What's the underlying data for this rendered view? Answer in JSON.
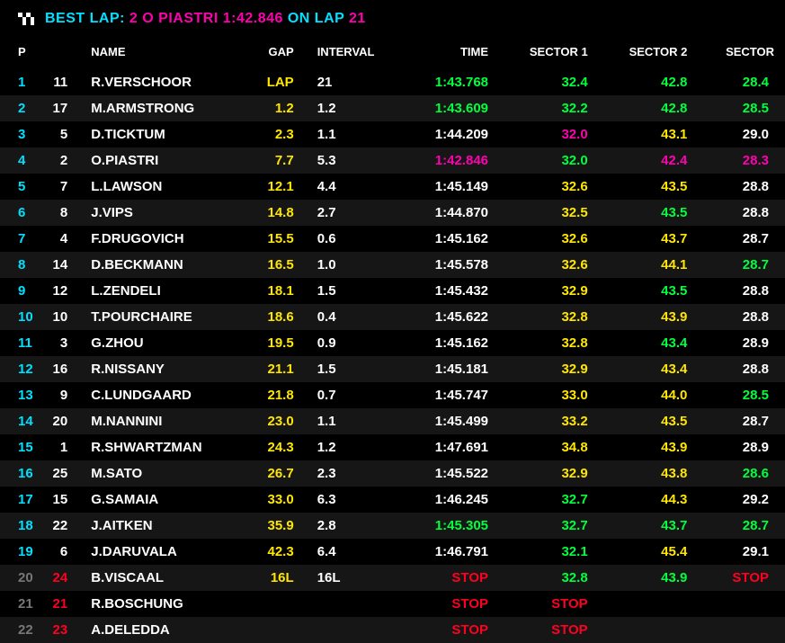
{
  "colors": {
    "white": "#ffffff",
    "cyan": "#00e0ff",
    "yellow": "#ffe600",
    "green": "#00ff3c",
    "purple": "#ff00b0",
    "red": "#ff0020",
    "grey": "#777777",
    "bg_odd": "#000000",
    "bg_even": "#161616"
  },
  "header": {
    "best_lap_label": "BEST LAP:",
    "best_lap_driver": "2 O PIASTRI",
    "best_lap_time": "1:42.846",
    "on_lap_label": "ON LAP",
    "on_lap_num": "21"
  },
  "columns": {
    "p": "P",
    "name": "NAME",
    "gap": "GAP",
    "interval": "INTERVAL",
    "time": "TIME",
    "s1": "SECTOR 1",
    "s2": "SECTOR 2",
    "s3": "SECTOR"
  },
  "rows": [
    {
      "p": "1",
      "p_c": "cyan",
      "num": "11",
      "num_c": "white",
      "name": "R.VERSCHOOR",
      "gap": "LAP",
      "gap_c": "yellow",
      "int": "21",
      "int_c": "white",
      "time": "1:43.768",
      "time_c": "green",
      "s1": "32.4",
      "s1_c": "green",
      "s2": "42.8",
      "s2_c": "green",
      "s3": "28.4",
      "s3_c": "green"
    },
    {
      "p": "2",
      "p_c": "cyan",
      "num": "17",
      "num_c": "white",
      "name": "M.ARMSTRONG",
      "gap": "1.2",
      "gap_c": "yellow",
      "int": "1.2",
      "int_c": "white",
      "time": "1:43.609",
      "time_c": "green",
      "s1": "32.2",
      "s1_c": "green",
      "s2": "42.8",
      "s2_c": "green",
      "s3": "28.5",
      "s3_c": "green"
    },
    {
      "p": "3",
      "p_c": "cyan",
      "num": "5",
      "num_c": "white",
      "name": "D.TICKTUM",
      "gap": "2.3",
      "gap_c": "yellow",
      "int": "1.1",
      "int_c": "white",
      "time": "1:44.209",
      "time_c": "white",
      "s1": "32.0",
      "s1_c": "purple",
      "s2": "43.1",
      "s2_c": "yellow",
      "s3": "29.0",
      "s3_c": "white"
    },
    {
      "p": "4",
      "p_c": "cyan",
      "num": "2",
      "num_c": "white",
      "name": "O.PIASTRI",
      "gap": "7.7",
      "gap_c": "yellow",
      "int": "5.3",
      "int_c": "white",
      "time": "1:42.846",
      "time_c": "purple",
      "s1": "32.0",
      "s1_c": "green",
      "s2": "42.4",
      "s2_c": "purple",
      "s3": "28.3",
      "s3_c": "purple"
    },
    {
      "p": "5",
      "p_c": "cyan",
      "num": "7",
      "num_c": "white",
      "name": "L.LAWSON",
      "gap": "12.1",
      "gap_c": "yellow",
      "int": "4.4",
      "int_c": "white",
      "time": "1:45.149",
      "time_c": "white",
      "s1": "32.6",
      "s1_c": "yellow",
      "s2": "43.5",
      "s2_c": "yellow",
      "s3": "28.8",
      "s3_c": "white"
    },
    {
      "p": "6",
      "p_c": "cyan",
      "num": "8",
      "num_c": "white",
      "name": "J.VIPS",
      "gap": "14.8",
      "gap_c": "yellow",
      "int": "2.7",
      "int_c": "white",
      "time": "1:44.870",
      "time_c": "white",
      "s1": "32.5",
      "s1_c": "yellow",
      "s2": "43.5",
      "s2_c": "green",
      "s3": "28.8",
      "s3_c": "white"
    },
    {
      "p": "7",
      "p_c": "cyan",
      "num": "4",
      "num_c": "white",
      "name": "F.DRUGOVICH",
      "gap": "15.5",
      "gap_c": "yellow",
      "int": "0.6",
      "int_c": "white",
      "time": "1:45.162",
      "time_c": "white",
      "s1": "32.6",
      "s1_c": "yellow",
      "s2": "43.7",
      "s2_c": "yellow",
      "s3": "28.7",
      "s3_c": "white"
    },
    {
      "p": "8",
      "p_c": "cyan",
      "num": "14",
      "num_c": "white",
      "name": "D.BECKMANN",
      "gap": "16.5",
      "gap_c": "yellow",
      "int": "1.0",
      "int_c": "white",
      "time": "1:45.578",
      "time_c": "white",
      "s1": "32.6",
      "s1_c": "yellow",
      "s2": "44.1",
      "s2_c": "yellow",
      "s3": "28.7",
      "s3_c": "green"
    },
    {
      "p": "9",
      "p_c": "cyan",
      "num": "12",
      "num_c": "white",
      "name": "L.ZENDELI",
      "gap": "18.1",
      "gap_c": "yellow",
      "int": "1.5",
      "int_c": "white",
      "time": "1:45.432",
      "time_c": "white",
      "s1": "32.9",
      "s1_c": "yellow",
      "s2": "43.5",
      "s2_c": "green",
      "s3": "28.8",
      "s3_c": "white"
    },
    {
      "p": "10",
      "p_c": "cyan",
      "num": "10",
      "num_c": "white",
      "name": "T.POURCHAIRE",
      "gap": "18.6",
      "gap_c": "yellow",
      "int": "0.4",
      "int_c": "white",
      "time": "1:45.622",
      "time_c": "white",
      "s1": "32.8",
      "s1_c": "yellow",
      "s2": "43.9",
      "s2_c": "yellow",
      "s3": "28.8",
      "s3_c": "white"
    },
    {
      "p": "11",
      "p_c": "cyan",
      "num": "3",
      "num_c": "white",
      "name": "G.ZHOU",
      "gap": "19.5",
      "gap_c": "yellow",
      "int": "0.9",
      "int_c": "white",
      "time": "1:45.162",
      "time_c": "white",
      "s1": "32.8",
      "s1_c": "yellow",
      "s2": "43.4",
      "s2_c": "green",
      "s3": "28.9",
      "s3_c": "white"
    },
    {
      "p": "12",
      "p_c": "cyan",
      "num": "16",
      "num_c": "white",
      "name": "R.NISSANY",
      "gap": "21.1",
      "gap_c": "yellow",
      "int": "1.5",
      "int_c": "white",
      "time": "1:45.181",
      "time_c": "white",
      "s1": "32.9",
      "s1_c": "yellow",
      "s2": "43.4",
      "s2_c": "yellow",
      "s3": "28.8",
      "s3_c": "white"
    },
    {
      "p": "13",
      "p_c": "cyan",
      "num": "9",
      "num_c": "white",
      "name": "C.LUNDGAARD",
      "gap": "21.8",
      "gap_c": "yellow",
      "int": "0.7",
      "int_c": "white",
      "time": "1:45.747",
      "time_c": "white",
      "s1": "33.0",
      "s1_c": "yellow",
      "s2": "44.0",
      "s2_c": "yellow",
      "s3": "28.5",
      "s3_c": "green"
    },
    {
      "p": "14",
      "p_c": "cyan",
      "num": "20",
      "num_c": "white",
      "name": "M.NANNINI",
      "gap": "23.0",
      "gap_c": "yellow",
      "int": "1.1",
      "int_c": "white",
      "time": "1:45.499",
      "time_c": "white",
      "s1": "33.2",
      "s1_c": "yellow",
      "s2": "43.5",
      "s2_c": "yellow",
      "s3": "28.7",
      "s3_c": "white"
    },
    {
      "p": "15",
      "p_c": "cyan",
      "num": "1",
      "num_c": "white",
      "name": "R.SHWARTZMAN",
      "gap": "24.3",
      "gap_c": "yellow",
      "int": "1.2",
      "int_c": "white",
      "time": "1:47.691",
      "time_c": "white",
      "s1": "34.8",
      "s1_c": "yellow",
      "s2": "43.9",
      "s2_c": "yellow",
      "s3": "28.9",
      "s3_c": "white"
    },
    {
      "p": "16",
      "p_c": "cyan",
      "num": "25",
      "num_c": "white",
      "name": "M.SATO",
      "gap": "26.7",
      "gap_c": "yellow",
      "int": "2.3",
      "int_c": "white",
      "time": "1:45.522",
      "time_c": "white",
      "s1": "32.9",
      "s1_c": "yellow",
      "s2": "43.8",
      "s2_c": "yellow",
      "s3": "28.6",
      "s3_c": "green"
    },
    {
      "p": "17",
      "p_c": "cyan",
      "num": "15",
      "num_c": "white",
      "name": "G.SAMAIA",
      "gap": "33.0",
      "gap_c": "yellow",
      "int": "6.3",
      "int_c": "white",
      "time": "1:46.245",
      "time_c": "white",
      "s1": "32.7",
      "s1_c": "green",
      "s2": "44.3",
      "s2_c": "yellow",
      "s3": "29.2",
      "s3_c": "white"
    },
    {
      "p": "18",
      "p_c": "cyan",
      "num": "22",
      "num_c": "white",
      "name": "J.AITKEN",
      "gap": "35.9",
      "gap_c": "yellow",
      "int": "2.8",
      "int_c": "white",
      "time": "1:45.305",
      "time_c": "green",
      "s1": "32.7",
      "s1_c": "green",
      "s2": "43.7",
      "s2_c": "green",
      "s3": "28.7",
      "s3_c": "green"
    },
    {
      "p": "19",
      "p_c": "cyan",
      "num": "6",
      "num_c": "white",
      "name": "J.DARUVALA",
      "gap": "42.3",
      "gap_c": "yellow",
      "int": "6.4",
      "int_c": "white",
      "time": "1:46.791",
      "time_c": "white",
      "s1": "32.1",
      "s1_c": "green",
      "s2": "45.4",
      "s2_c": "yellow",
      "s3": "29.1",
      "s3_c": "white"
    },
    {
      "p": "20",
      "p_c": "grey",
      "num": "24",
      "num_c": "red",
      "name": "B.VISCAAL",
      "gap": "16L",
      "gap_c": "yellow",
      "int": "16L",
      "int_c": "white",
      "time": "STOP",
      "time_c": "red",
      "s1": "32.8",
      "s1_c": "green",
      "s2": "43.9",
      "s2_c": "green",
      "s3": "STOP",
      "s3_c": "red"
    },
    {
      "p": "21",
      "p_c": "grey",
      "num": "21",
      "num_c": "red",
      "name": "R.BOSCHUNG",
      "gap": "",
      "gap_c": "yellow",
      "int": "",
      "int_c": "white",
      "time": "STOP",
      "time_c": "red",
      "s1": "STOP",
      "s1_c": "red",
      "s2": "",
      "s2_c": "white",
      "s3": "",
      "s3_c": "white"
    },
    {
      "p": "22",
      "p_c": "grey",
      "num": "23",
      "num_c": "red",
      "name": "A.DELEDDA",
      "gap": "",
      "gap_c": "yellow",
      "int": "",
      "int_c": "white",
      "time": "STOP",
      "time_c": "red",
      "s1": "STOP",
      "s1_c": "red",
      "s2": "",
      "s2_c": "white",
      "s3": "",
      "s3_c": "white"
    }
  ]
}
